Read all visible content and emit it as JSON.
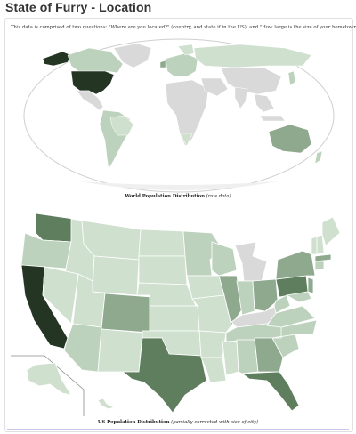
{
  "page": {
    "title": "State of Furry - Location",
    "intro": "This data is comprised of two questions: \"Where are you located?\" (country, and state if in the US), and \"How large is the size of your hometown?\""
  },
  "world_map": {
    "caption_title": "World Population Distribution",
    "caption_note": "(raw data)"
  },
  "us_map": {
    "caption_title": "US Population Distribution",
    "caption_note": "(partially corrected with size of city)"
  },
  "colors": {
    "highest": "#243524",
    "high": "#5e7e5e",
    "mid": "#8fa98f",
    "low": "#bdd2bd",
    "lowest": "#cfe0cf",
    "no_data": "#d9d9d9",
    "ocean": "#ffffff"
  }
}
